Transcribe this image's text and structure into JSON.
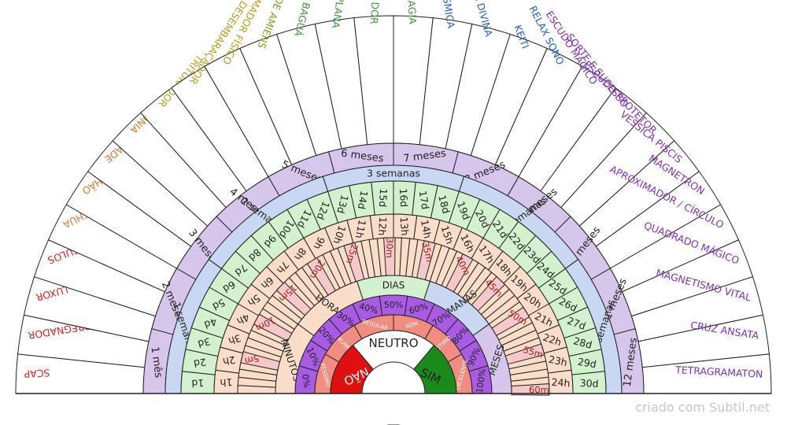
{
  "credit": "criado com Subtil.net",
  "center_label": "NEUTRO",
  "yes_label": "SIM",
  "no_label": "NÃO",
  "colors": {
    "outline": "#222222",
    "outer_bg": "#ffffff",
    "months_bg": "#d6c6ec",
    "weeks_bg": "#c9d7f3",
    "days_bg": "#d3f0cf",
    "hours_bg": "#f9ddc8",
    "minutes_inner_bg": "#f9ddc8",
    "minutes_mark_bg": "#f5c9c9",
    "percent_bg": "#a95ce3",
    "quality_bg": "#f08c80",
    "yes": "#1a8a1a",
    "no": "#e01010",
    "center": "#ffffff",
    "section_horas": "#f9ddc8",
    "section_dias": "#d3f0cf",
    "section_semanas": "#c9d7f3",
    "section_meses": "#d6c6ec",
    "section_minutos": "#f9ddc8"
  },
  "outer_labels": [
    {
      "text": "SCAP",
      "color": "#e52020"
    },
    {
      "text": "DESIMPREGNADOR",
      "color": "#e52020"
    },
    {
      "text": "LUXOR",
      "color": "#e52020"
    },
    {
      "text": "NOVE CÍRCULOS",
      "color": "#e52020"
    },
    {
      "text": "YOSHUA",
      "color": "#e07a30"
    },
    {
      "text": "TURBILHÃO",
      "color": "#e07a30"
    },
    {
      "text": "ALTA VITALIDADE",
      "color": "#e07a30"
    },
    {
      "text": "HARMONIA",
      "color": "#e07a30"
    },
    {
      "text": "TRITURADOR",
      "color": "#b8a020"
    },
    {
      "text": "DESEMBARAÇADOR",
      "color": "#b8a020"
    },
    {
      "text": "PROGRAMADOR FÍSICO",
      "color": "#b8a020"
    },
    {
      "text": "LABIRINTO DE AMIENS",
      "color": "#8a9a20"
    },
    {
      "text": "BAGUÁ",
      "color": "#3a9a3a"
    },
    {
      "text": "PIRÂMIDE PLANA",
      "color": "#3a9a3a"
    },
    {
      "text": "ANTI DOR",
      "color": "#3a9a3a"
    },
    {
      "text": "ANTI MAGIA",
      "color": "#3a9a3a"
    },
    {
      "text": "ESPIRAL CÓSMICA",
      "color": "#2060d8"
    },
    {
      "text": "JUSTIÇA DIVINA",
      "color": "#2060d8"
    },
    {
      "text": "KEITI",
      "color": "#2060d8"
    },
    {
      "text": "RELAX SONO",
      "color": "#2060d8"
    },
    {
      "text": "ESCUDO MÁGICO",
      "color": "#8030c0"
    },
    {
      "text": "SORTE E SUCESSO",
      "color": "#8030c0"
    },
    {
      "text": "ESCUDO PROTETOR",
      "color": "#8030c0"
    },
    {
      "text": "VESSICA PISCIS",
      "color": "#8030c0"
    },
    {
      "text": "MAGNETRON",
      "color": "#8030c0"
    },
    {
      "text": "APROXIMADOR / CÍRCULO",
      "color": "#8030c0"
    },
    {
      "text": "QUADRADO MÁGICO",
      "color": "#8030c0"
    },
    {
      "text": "MAGNETISMO VITAL",
      "color": "#8030c0"
    },
    {
      "text": "CRUZ ANSATA",
      "color": "#8030c0"
    },
    {
      "text": "TETRAGRAMATON",
      "color": "#8030c0"
    }
  ],
  "months": [
    "1 mês",
    "2 meses",
    "3 meses",
    "4 meses",
    "5 meses",
    "6 meses",
    "7 meses",
    "8 meses",
    "9 meses",
    "10 meses",
    "11 meses",
    "12 meses"
  ],
  "weeks": [
    "1 semana",
    "2 semanas",
    "3 semanas",
    "4 semanas",
    "5 semanas"
  ],
  "days": [
    "1d",
    "2d",
    "3d",
    "4d",
    "5d",
    "6d",
    "7d",
    "8d",
    "9d",
    "10d",
    "11d",
    "12d",
    "13d",
    "14d",
    "15d",
    "16d",
    "17d",
    "18d",
    "19d",
    "20d",
    "21d",
    "22d",
    "23d",
    "24d",
    "25d",
    "26d",
    "27d",
    "28d",
    "29d",
    "30d"
  ],
  "hours": [
    "1h",
    "2h",
    "3h",
    "4h",
    "5h",
    "6h",
    "7h",
    "8h",
    "9h",
    "10h",
    "11h",
    "12h",
    "13h",
    "14h",
    "15h",
    "16h",
    "17h",
    "18h",
    "19h",
    "20h",
    "21h",
    "22h",
    "23h",
    "24h"
  ],
  "minute_marks": [
    "5m",
    "10m",
    "15m",
    "20m",
    "25m",
    "30m",
    "35m",
    "40m",
    "45m",
    "50m",
    "55m",
    "60m"
  ],
  "sections": [
    "MINUTOS",
    "HORAS",
    "DIAS",
    "SEMANAS",
    "MESES"
  ],
  "percents": [
    "0%",
    "10%",
    "20%",
    "30%",
    "40%",
    "50%",
    "60%",
    "70%",
    "80%",
    "90%",
    "100%"
  ],
  "quality": [
    "PÉSSIMO",
    "RUIM",
    "REGULAR",
    "BOM",
    "ÓTIMO",
    "EXCELENTE"
  ]
}
